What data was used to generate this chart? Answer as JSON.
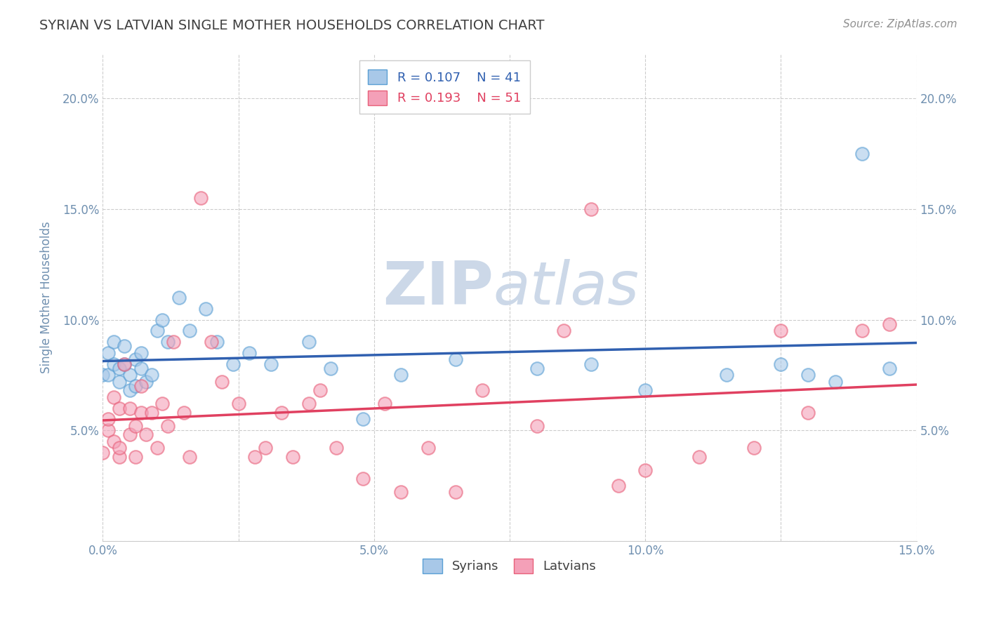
{
  "title": "SYRIAN VS LATVIAN SINGLE MOTHER HOUSEHOLDS CORRELATION CHART",
  "source": "Source: ZipAtlas.com",
  "ylabel": "Single Mother Households",
  "xlim": [
    0.0,
    0.15
  ],
  "ylim": [
    0.0,
    0.22
  ],
  "xticks": [
    0.0,
    0.025,
    0.05,
    0.075,
    0.1,
    0.125,
    0.15
  ],
  "xticklabels": [
    "0.0%",
    "",
    "5.0%",
    "",
    "10.0%",
    "",
    "15.0%"
  ],
  "yticks": [
    0.0,
    0.05,
    0.1,
    0.15,
    0.2
  ],
  "yticklabels": [
    "",
    "5.0%",
    "10.0%",
    "15.0%",
    "20.0%"
  ],
  "legend_r_blue": "R = 0.107",
  "legend_n_blue": "N = 41",
  "legend_r_pink": "R = 0.193",
  "legend_n_pink": "N = 51",
  "blue_color": "#a8c8e8",
  "pink_color": "#f4a0b8",
  "blue_edge_color": "#5a9fd4",
  "pink_edge_color": "#e8607a",
  "blue_line_color": "#3060b0",
  "pink_line_color": "#e04060",
  "title_color": "#404040",
  "axis_label_color": "#7090b0",
  "tick_color": "#7090b0",
  "source_color": "#909090",
  "watermark_color": "#ccd8e8",
  "syrians_x": [
    0.0,
    0.001,
    0.001,
    0.002,
    0.002,
    0.003,
    0.003,
    0.004,
    0.004,
    0.005,
    0.005,
    0.006,
    0.006,
    0.007,
    0.007,
    0.008,
    0.009,
    0.01,
    0.011,
    0.012,
    0.014,
    0.016,
    0.019,
    0.021,
    0.024,
    0.027,
    0.031,
    0.038,
    0.042,
    0.048,
    0.055,
    0.065,
    0.08,
    0.09,
    0.1,
    0.115,
    0.125,
    0.13,
    0.135,
    0.14,
    0.145
  ],
  "syrians_y": [
    0.075,
    0.085,
    0.075,
    0.09,
    0.08,
    0.078,
    0.072,
    0.08,
    0.088,
    0.075,
    0.068,
    0.082,
    0.07,
    0.078,
    0.085,
    0.072,
    0.075,
    0.095,
    0.1,
    0.09,
    0.11,
    0.095,
    0.105,
    0.09,
    0.08,
    0.085,
    0.08,
    0.09,
    0.078,
    0.055,
    0.075,
    0.082,
    0.078,
    0.08,
    0.068,
    0.075,
    0.08,
    0.075,
    0.072,
    0.175,
    0.078
  ],
  "latvians_x": [
    0.0,
    0.001,
    0.001,
    0.002,
    0.002,
    0.003,
    0.003,
    0.003,
    0.004,
    0.005,
    0.005,
    0.006,
    0.006,
    0.007,
    0.007,
    0.008,
    0.009,
    0.01,
    0.011,
    0.012,
    0.013,
    0.015,
    0.016,
    0.018,
    0.02,
    0.022,
    0.025,
    0.028,
    0.03,
    0.033,
    0.035,
    0.038,
    0.04,
    0.043,
    0.048,
    0.052,
    0.055,
    0.06,
    0.065,
    0.07,
    0.08,
    0.085,
    0.09,
    0.095,
    0.1,
    0.11,
    0.12,
    0.125,
    0.13,
    0.14,
    0.145
  ],
  "latvians_y": [
    0.04,
    0.05,
    0.055,
    0.045,
    0.065,
    0.06,
    0.038,
    0.042,
    0.08,
    0.048,
    0.06,
    0.038,
    0.052,
    0.058,
    0.07,
    0.048,
    0.058,
    0.042,
    0.062,
    0.052,
    0.09,
    0.058,
    0.038,
    0.155,
    0.09,
    0.072,
    0.062,
    0.038,
    0.042,
    0.058,
    0.038,
    0.062,
    0.068,
    0.042,
    0.028,
    0.062,
    0.022,
    0.042,
    0.022,
    0.068,
    0.052,
    0.095,
    0.15,
    0.025,
    0.032,
    0.038,
    0.042,
    0.095,
    0.058,
    0.095,
    0.098
  ],
  "dot_size": 180,
  "dot_linewidth": 1.5
}
